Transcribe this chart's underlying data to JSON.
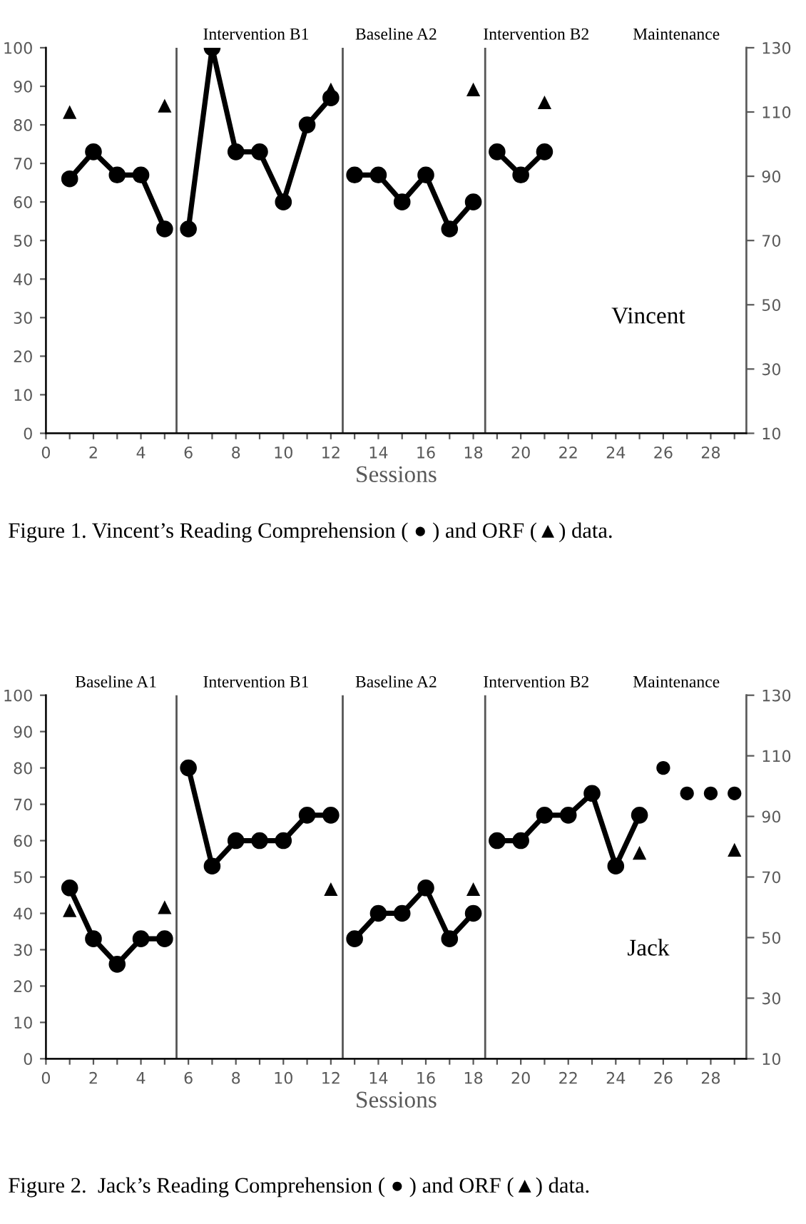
{
  "chart_data": [
    {
      "type": "line",
      "title": "Figure 1. Vincent’s Reading Comprehension ( ● ) and ORF (▲) data.",
      "xlabel": "Sessions",
      "x": [
        1,
        2,
        3,
        4,
        5,
        6,
        7,
        8,
        9,
        10,
        11,
        12,
        13,
        14,
        15,
        16,
        17,
        18,
        19,
        20,
        21
      ],
      "series": [
        {
          "type": "line",
          "color": "#000000",
          "marker": "circle",
          "values": [
            66,
            73,
            67,
            67,
            53,
            null,
            null,
            null,
            null,
            null,
            null,
            null,
            null,
            null,
            null,
            null,
            null,
            null,
            null,
            null,
            null
          ]
        },
        {
          "type": "line",
          "color": "#000000",
          "marker": "circle",
          "values": [
            null,
            null,
            null,
            null,
            null,
            53,
            100,
            73,
            73,
            60,
            80,
            87,
            null,
            null,
            null,
            null,
            null,
            null,
            null,
            null,
            null
          ]
        },
        {
          "type": "line",
          "color": "#000000",
          "marker": "circle",
          "values": [
            null,
            null,
            null,
            null,
            null,
            null,
            null,
            null,
            null,
            null,
            null,
            null,
            67,
            67,
            60,
            67,
            53,
            60,
            null,
            null,
            null
          ]
        },
        {
          "type": "line",
          "color": "#000000",
          "marker": "circle",
          "values": [
            null,
            null,
            null,
            null,
            null,
            null,
            null,
            null,
            null,
            null,
            null,
            null,
            null,
            null,
            null,
            null,
            null,
            null,
            73,
            67,
            73
          ]
        },
        {
          "type": "scatter",
          "axis": "y2",
          "color": "#000000",
          "marker": "triangle",
          "values": [
            110,
            null,
            null,
            null,
            112,
            null,
            null,
            null,
            null,
            null,
            null,
            117,
            null,
            null,
            null,
            null,
            null,
            117,
            null,
            null,
            113
          ]
        }
      ],
      "xlim": [
        0,
        29.5
      ],
      "xticks": [
        0,
        {
          "value": 1,
          "label": null
        },
        2,
        {
          "value": 3,
          "label": null
        },
        4,
        {
          "value": 5,
          "label": null
        },
        6,
        {
          "value": 7,
          "label": null
        },
        8,
        {
          "value": 9,
          "label": null
        },
        10,
        {
          "value": 11,
          "label": null
        },
        12,
        {
          "value": 13,
          "label": null
        },
        14,
        {
          "value": 15,
          "label": null
        },
        16,
        {
          "value": 17,
          "label": null
        },
        18,
        {
          "value": 19,
          "label": null
        },
        20,
        {
          "value": 21,
          "label": null
        },
        22,
        {
          "value": 23,
          "label": null
        },
        24,
        {
          "value": 25,
          "label": null
        },
        26,
        {
          "value": 27,
          "label": null
        },
        28,
        {
          "value": 29,
          "label": null
        }
      ],
      "ylim": [
        0,
        100
      ],
      "yticks": [
        0,
        10,
        20,
        30,
        40,
        50,
        60,
        70,
        80,
        90,
        100
      ],
      "y2lim": [
        10,
        130
      ],
      "y2ticks": [
        10,
        30,
        50,
        70,
        90,
        110,
        130
      ],
      "ref_lines": [
        {
          "axis": "x",
          "value": 5.5,
          "color": "#555555"
        },
        {
          "axis": "x",
          "value": 12.5,
          "color": "#555555"
        },
        {
          "axis": "x",
          "value": 18.5,
          "color": "#555555"
        }
      ],
      "annotations": [
        "Intervention B1",
        "Baseline A2",
        "Intervention B2",
        "Maintenance",
        "Vincent"
      ],
      "grid": false,
      "legend": false
    },
    {
      "type": "line",
      "title": "Figure 2.  Jack’s Reading Comprehension ( ● ) and ORF (▲) data.",
      "xlabel": "Sessions",
      "x": [
        1,
        2,
        3,
        4,
        5,
        6,
        7,
        8,
        9,
        10,
        11,
        12,
        13,
        14,
        15,
        16,
        17,
        18,
        19,
        20,
        21,
        22,
        23,
        24,
        25,
        26,
        27,
        28,
        29
      ],
      "series": [
        {
          "type": "line",
          "color": "#000000",
          "marker": "circle",
          "values": [
            47,
            33,
            26,
            33,
            33,
            null,
            null,
            null,
            null,
            null,
            null,
            null,
            null,
            null,
            null,
            null,
            null,
            null,
            null,
            null,
            null,
            null,
            null,
            null,
            null,
            null,
            null,
            null,
            null
          ]
        },
        {
          "type": "line",
          "color": "#000000",
          "marker": "circle",
          "values": [
            null,
            null,
            null,
            null,
            null,
            80,
            53,
            60,
            60,
            60,
            67,
            67,
            null,
            null,
            null,
            null,
            null,
            null,
            null,
            null,
            null,
            null,
            null,
            null,
            null,
            null,
            null,
            null,
            null
          ]
        },
        {
          "type": "line",
          "color": "#000000",
          "marker": "circle",
          "values": [
            null,
            null,
            null,
            null,
            null,
            null,
            null,
            null,
            null,
            null,
            null,
            null,
            33,
            40,
            40,
            47,
            33,
            40,
            null,
            null,
            null,
            null,
            null,
            null,
            null,
            null,
            null,
            null,
            null
          ]
        },
        {
          "type": "line",
          "color": "#000000",
          "marker": "circle",
          "values": [
            null,
            null,
            null,
            null,
            null,
            null,
            null,
            null,
            null,
            null,
            null,
            null,
            null,
            null,
            null,
            null,
            null,
            null,
            60,
            60,
            67,
            67,
            73,
            53,
            67,
            null,
            null,
            null,
            null
          ]
        },
        {
          "type": "scatter",
          "color": "#000000",
          "marker": "circle",
          "values": [
            null,
            null,
            null,
            null,
            null,
            null,
            null,
            null,
            null,
            null,
            null,
            null,
            null,
            null,
            null,
            null,
            null,
            null,
            null,
            null,
            null,
            null,
            null,
            null,
            null,
            80,
            73,
            73,
            73
          ]
        },
        {
          "type": "scatter",
          "axis": "y2",
          "color": "#000000",
          "marker": "triangle",
          "values": [
            59,
            null,
            null,
            null,
            60,
            null,
            null,
            null,
            null,
            null,
            null,
            66,
            null,
            null,
            null,
            null,
            null,
            66,
            null,
            null,
            null,
            null,
            null,
            null,
            78,
            null,
            null,
            null,
            79
          ]
        }
      ],
      "xlim": [
        0,
        29.5
      ],
      "xticks": [
        0,
        {
          "value": 1,
          "label": null
        },
        2,
        {
          "value": 3,
          "label": null
        },
        4,
        {
          "value": 5,
          "label": null
        },
        6,
        {
          "value": 7,
          "label": null
        },
        8,
        {
          "value": 9,
          "label": null
        },
        10,
        {
          "value": 11,
          "label": null
        },
        12,
        {
          "value": 13,
          "label": null
        },
        14,
        {
          "value": 15,
          "label": null
        },
        16,
        {
          "value": 17,
          "label": null
        },
        18,
        {
          "value": 19,
          "label": null
        },
        20,
        {
          "value": 21,
          "label": null
        },
        22,
        {
          "value": 23,
          "label": null
        },
        24,
        {
          "value": 25,
          "label": null
        },
        26,
        {
          "value": 27,
          "label": null
        },
        28,
        {
          "value": 29,
          "label": null
        }
      ],
      "ylim": [
        0,
        100
      ],
      "yticks": [
        0,
        10,
        20,
        30,
        40,
        50,
        60,
        70,
        80,
        90,
        100
      ],
      "y2lim": [
        10,
        130
      ],
      "y2ticks": [
        10,
        30,
        50,
        70,
        90,
        110,
        130
      ],
      "ref_lines": [
        {
          "axis": "x",
          "value": 5.5,
          "color": "#555555"
        },
        {
          "axis": "x",
          "value": 12.5,
          "color": "#555555"
        },
        {
          "axis": "x",
          "value": 18.5,
          "color": "#555555"
        }
      ],
      "annotations": [
        "Baseline A1",
        "Intervention B1",
        "Baseline A2",
        "Intervention B2",
        "Maintenance",
        "Jack"
      ],
      "grid": false,
      "legend": false
    }
  ]
}
